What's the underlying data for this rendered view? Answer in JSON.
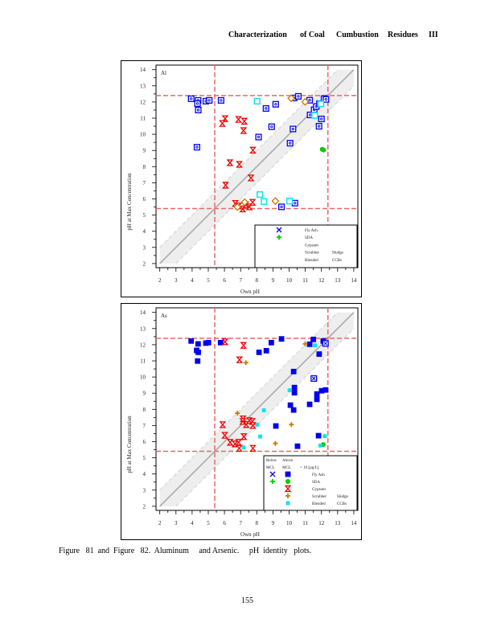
{
  "header": {
    "parts": [
      "Characterization",
      "of Coal",
      "Cumbustion",
      "Residues",
      "III"
    ]
  },
  "caption": "Figure   81  and  Figure   82.  Aluminum     and Arsenic.     pH  identity   plots.",
  "page_number": "155",
  "colors": {
    "fly_ash": "#0000ee",
    "sda": "#00cc00",
    "gypsum": "#ee0000",
    "scrubber": "#cc7a00",
    "blended": "#00e5ee",
    "ref_line": "#ee6666",
    "identity": "#aaaaaa",
    "band": "#eeeeee"
  },
  "chart_data": [
    {
      "type": "scatter",
      "title": "Al",
      "xlabel": "Own    pH",
      "ylabel": "pH    at    Max    Concentration",
      "xlim": [
        2,
        14
      ],
      "ylim": [
        2,
        14
      ],
      "xticks": [
        "2",
        "3",
        "4",
        "5",
        "6",
        "7",
        "8",
        "9",
        "10",
        "11",
        "12",
        "13",
        "14"
      ],
      "yticks": [
        "2",
        "3",
        "4",
        "5",
        "6",
        "7",
        "8",
        "9",
        "10",
        "11",
        "12",
        "13",
        "14"
      ],
      "reference_lines": {
        "x": [
          5.4,
          12.4
        ],
        "y": [
          5.4,
          12.4
        ]
      },
      "identity_band": 1,
      "legend": {
        "placement": "bottom-right",
        "rows": [
          {
            "symbol": "x",
            "color": "#0000ee",
            "label": "Fly    Ash",
            "label2": ""
          },
          {
            "symbol": "plus",
            "color": "#00cc00",
            "label": "SDA",
            "label2": ""
          },
          {
            "symbol": "",
            "color": "",
            "label": "Gypsum",
            "label2": ""
          },
          {
            "symbol": "",
            "color": "",
            "label": "Scrubber",
            "label2": "Sludge"
          },
          {
            "symbol": "",
            "color": "",
            "label": "Blended",
            "label2": "CCBs"
          }
        ]
      },
      "series": [
        {
          "name": "Fly Ash",
          "symbol": "sqdot",
          "color": "#0000ee",
          "points": [
            [
              3.94,
              12.2
            ],
            [
              4.37,
              12.1
            ],
            [
              4.33,
              11.9
            ],
            [
              4.38,
              11.5
            ],
            [
              4.85,
              12.05
            ],
            [
              5.06,
              12.1
            ],
            [
              5.79,
              12.1
            ],
            [
              4.3,
              9.2
            ],
            [
              8.57,
              11.6
            ],
            [
              9.17,
              11.86
            ],
            [
              8.11,
              9.83
            ],
            [
              8.92,
              10.47
            ],
            [
              9.53,
              5.51
            ],
            [
              10.06,
              9.45
            ],
            [
              10.24,
              10.33
            ],
            [
              10.31,
              12.25
            ],
            [
              10.57,
              12.35
            ],
            [
              10.36,
              5.74
            ],
            [
              11.27,
              12.11
            ],
            [
              11.3,
              11.2
            ],
            [
              11.55,
              11.52
            ],
            [
              11.68,
              11.72
            ],
            [
              11.85,
              10.5
            ],
            [
              11.88,
              11.9
            ],
            [
              12.0,
              10.95
            ],
            [
              12.16,
              12.21
            ],
            [
              12.28,
              12.16
            ]
          ]
        },
        {
          "name": "SDA",
          "symbol": "circle",
          "color": "#00cc00",
          "points": [
            [
              12.05,
              9.07
            ],
            [
              12.13,
              9.03
            ]
          ]
        },
        {
          "name": "Gypsum",
          "symbol": "hourglass",
          "color": "#ee0000",
          "points": [
            [
              6.04,
              10.97
            ],
            [
              5.87,
              10.67
            ],
            [
              6.87,
              10.92
            ],
            [
              7.23,
              10.81
            ],
            [
              7.18,
              10.23
            ],
            [
              7.76,
              9.02
            ],
            [
              6.34,
              8.24
            ],
            [
              6.92,
              8.14
            ],
            [
              7.64,
              7.3
            ],
            [
              6.07,
              6.85
            ],
            [
              6.67,
              5.72
            ],
            [
              6.87,
              5.56
            ],
            [
              7.13,
              5.38
            ],
            [
              7.33,
              5.64
            ],
            [
              7.54,
              5.51
            ],
            [
              7.74,
              5.79
            ]
          ]
        },
        {
          "name": "Scrubber Sludge",
          "symbol": "diamond",
          "color": "#cc7a00",
          "points": [
            [
              10.13,
              12.23
            ],
            [
              10.99,
              12.01
            ],
            [
              9.15,
              5.87
            ],
            [
              6.8,
              5.5
            ],
            [
              7.25,
              5.8
            ]
          ]
        },
        {
          "name": "Blended CCBs",
          "symbol": "square",
          "color": "#00e5ee",
          "points": [
            [
              8.02,
              12.05
            ],
            [
              11.58,
              11.17
            ],
            [
              11.96,
              11.88
            ],
            [
              8.19,
              6.27
            ],
            [
              8.45,
              5.84
            ],
            [
              10.03,
              5.87
            ]
          ]
        }
      ]
    },
    {
      "type": "scatter",
      "title": "As",
      "xlabel": "Own    pH",
      "ylabel": "pH    at    Max    Concentration",
      "xlim": [
        2,
        14
      ],
      "ylim": [
        2,
        14
      ],
      "xticks": [
        "2",
        "3",
        "4",
        "5",
        "6",
        "7",
        "8",
        "9",
        "10",
        "11",
        "12",
        "13",
        "14"
      ],
      "yticks": [
        "2",
        "3",
        "4",
        "5",
        "6",
        "7",
        "8",
        "9",
        "10",
        "11",
        "12",
        "13",
        "14"
      ],
      "reference_lines": {
        "x": [
          5.4,
          12.4
        ],
        "y": [
          5.4,
          12.4
        ]
      },
      "identity_band": 1,
      "legend": {
        "placement": "bottom-right",
        "header": [
          "Below",
          "Above"
        ],
        "header2": [
          "MCL",
          "MCL",
          "=   10    [µg/L]"
        ],
        "rows": [
          {
            "symbol": "x",
            "color": "#0000ee",
            "symbol2": "filled",
            "label": "Fly    Ash",
            "label2": ""
          },
          {
            "symbol": "plus",
            "color": "#00cc00",
            "symbol2": "circle",
            "label": "SDA",
            "label2": ""
          },
          {
            "symbol": "",
            "color": "#ee0000",
            "symbol2": "hourglass",
            "label": "Gypsum",
            "label2": ""
          },
          {
            "symbol": "",
            "color": "#cc7a00",
            "symbol2": "plus",
            "label": "Scrubber",
            "label2": "Sludge"
          },
          {
            "symbol": "",
            "color": "#00e5ee",
            "symbol2": "smallsq",
            "label": "Blended",
            "label2": "CCBs"
          }
        ]
      },
      "series": [
        {
          "name": "Fly Ash (above MCL)",
          "symbol": "filled",
          "color": "#0000ee",
          "points": [
            [
              3.94,
              12.23
            ],
            [
              4.28,
              11.65
            ],
            [
              4.37,
              12.05
            ],
            [
              4.38,
              11.53
            ],
            [
              4.34,
              10.99
            ],
            [
              4.85,
              12.1
            ],
            [
              5.01,
              12.13
            ],
            [
              5.76,
              12.13
            ],
            [
              8.14,
              11.53
            ],
            [
              8.59,
              11.63
            ],
            [
              8.9,
              12.13
            ],
            [
              9.53,
              12.36
            ],
            [
              9.18,
              6.97
            ],
            [
              10.28,
              10.34
            ],
            [
              10.33,
              9.35
            ],
            [
              10.33,
              9.03
            ],
            [
              10.08,
              8.26
            ],
            [
              10.28,
              7.96
            ],
            [
              10.52,
              5.72
            ],
            [
              11.27,
              12.03
            ],
            [
              11.5,
              12.33
            ],
            [
              11.27,
              8.31
            ],
            [
              11.72,
              8.95
            ],
            [
              11.72,
              8.62
            ],
            [
              11.86,
              11.42
            ],
            [
              11.82,
              6.37
            ],
            [
              12.01,
              9.15
            ],
            [
              12.26,
              9.2
            ],
            [
              12.11,
              12.23
            ]
          ]
        },
        {
          "name": "Fly Ash (below MCL)",
          "symbol": "sqx",
          "color": "#0000ee",
          "points": [
            [
              11.53,
              9.91
            ],
            [
              12.25,
              12.08
            ]
          ]
        },
        {
          "name": "SDA",
          "symbol": "circle",
          "color": "#00cc00",
          "points": [
            [
              12.11,
              5.82
            ]
          ]
        },
        {
          "name": "Gypsum",
          "symbol": "hourglass",
          "color": "#ee0000",
          "points": [
            [
              6.04,
              12.18
            ],
            [
              7.18,
              11.96
            ],
            [
              6.93,
              11.07
            ],
            [
              5.89,
              7.05
            ],
            [
              6.02,
              6.39
            ],
            [
              6.35,
              5.96
            ],
            [
              6.65,
              5.86
            ],
            [
              6.87,
              5.96
            ],
            [
              6.92,
              5.59
            ],
            [
              7.15,
              7.41
            ],
            [
              7.13,
              7.25
            ],
            [
              7.2,
              6.31
            ],
            [
              7.35,
              7.06
            ],
            [
              7.54,
              7.3
            ],
            [
              7.73,
              7.25
            ],
            [
              7.76,
              7.0
            ],
            [
              7.76,
              5.59
            ]
          ]
        },
        {
          "name": "Scrubber Sludge",
          "symbol": "plus",
          "color": "#cc7a00",
          "points": [
            [
              10.99,
              12.05
            ],
            [
              7.33,
              10.89
            ],
            [
              6.8,
              7.76
            ],
            [
              10.14,
              7.06
            ],
            [
              9.15,
              5.89
            ]
          ]
        },
        {
          "name": "Blended CCBs",
          "symbol": "smallsq",
          "color": "#00e5ee",
          "points": [
            [
              11.6,
              11.96
            ],
            [
              10.03,
              9.18
            ],
            [
              8.44,
              7.94
            ],
            [
              8.03,
              7.05
            ],
            [
              8.21,
              6.32
            ],
            [
              7.19,
              5.64
            ],
            [
              11.93,
              5.76
            ],
            [
              12.21,
              6.34
            ]
          ]
        }
      ]
    }
  ]
}
